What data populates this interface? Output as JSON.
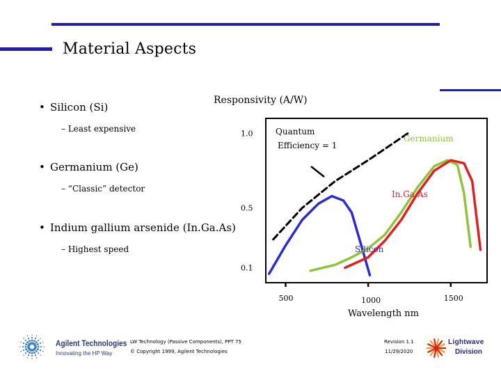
{
  "slide": {
    "title": "Material Aspects",
    "bullets": [
      {
        "text": "Silicon (Si)",
        "sub": "– Least expensive"
      },
      {
        "text": "Germanium (Ge)",
        "sub": "– “Classic” detector"
      },
      {
        "text": "Indium gallium arsenide (In.Ga.As)",
        "sub": "– Highest speed"
      }
    ],
    "bullet_char": "•"
  },
  "footer": {
    "company": "Agilent Technologies",
    "tagline": "Innovating the HP Way",
    "doc_line1": "LW Technology (Passive Components), PPT  75",
    "doc_line2": "© Copyright 1999, Agilent Technologies",
    "revision": "Revision 1.1",
    "date": "11/29/2020",
    "division_top": "Lightwave",
    "division_bottom": "Division"
  },
  "colors": {
    "rule": "#1f1fa8",
    "silicon": "#2a2ad6",
    "germanium": "#8fc43a",
    "ingaas": "#e02020",
    "quantum": "#000000",
    "division": "#1f1fa8",
    "agilent_star": "#3a7fd0"
  },
  "chart_data": {
    "type": "line",
    "title": "Responsivity (A/W)",
    "xlabel": "Wavelength nm",
    "x_ticks": [
      500,
      1000,
      1500
    ],
    "y_ticks": [
      0.1,
      0.5,
      1.0
    ],
    "y_tick_labels": [
      "0.1",
      "0.5",
      "1.0"
    ],
    "x_tick_labels": [
      "500",
      "1000",
      "1500"
    ],
    "xlim": [
      380,
      1720
    ],
    "ylim": [
      0,
      1.1
    ],
    "annotations": {
      "quantum": [
        "Quantum",
        "Efficiency = 1"
      ],
      "germanium": "Germanium",
      "ingaas": "In.Ga.As",
      "silicon": "Silicon"
    },
    "series": [
      {
        "name": "Quantum Efficiency = 1",
        "style": "dashed",
        "points": [
          [
            425,
            0.29
          ],
          [
            600,
            0.5
          ],
          [
            800,
            0.68
          ],
          [
            1000,
            0.82
          ],
          [
            1240,
            1.0
          ]
        ]
      },
      {
        "name": "Silicon",
        "points": [
          [
            400,
            0.06
          ],
          [
            500,
            0.25
          ],
          [
            600,
            0.42
          ],
          [
            700,
            0.53
          ],
          [
            780,
            0.58
          ],
          [
            850,
            0.55
          ],
          [
            900,
            0.47
          ],
          [
            950,
            0.28
          ],
          [
            1010,
            0.05
          ]
        ]
      },
      {
        "name": "Germanium",
        "points": [
          [
            650,
            0.08
          ],
          [
            800,
            0.12
          ],
          [
            900,
            0.17
          ],
          [
            1000,
            0.23
          ],
          [
            1100,
            0.32
          ],
          [
            1200,
            0.47
          ],
          [
            1300,
            0.64
          ],
          [
            1400,
            0.78
          ],
          [
            1480,
            0.82
          ],
          [
            1540,
            0.79
          ],
          [
            1580,
            0.6
          ],
          [
            1620,
            0.24
          ]
        ]
      },
      {
        "name": "In.Ga.As",
        "points": [
          [
            860,
            0.1
          ],
          [
            1000,
            0.17
          ],
          [
            1100,
            0.28
          ],
          [
            1200,
            0.42
          ],
          [
            1300,
            0.6
          ],
          [
            1400,
            0.75
          ],
          [
            1500,
            0.82
          ],
          [
            1580,
            0.8
          ],
          [
            1630,
            0.68
          ],
          [
            1660,
            0.4
          ],
          [
            1680,
            0.22
          ]
        ]
      }
    ]
  }
}
